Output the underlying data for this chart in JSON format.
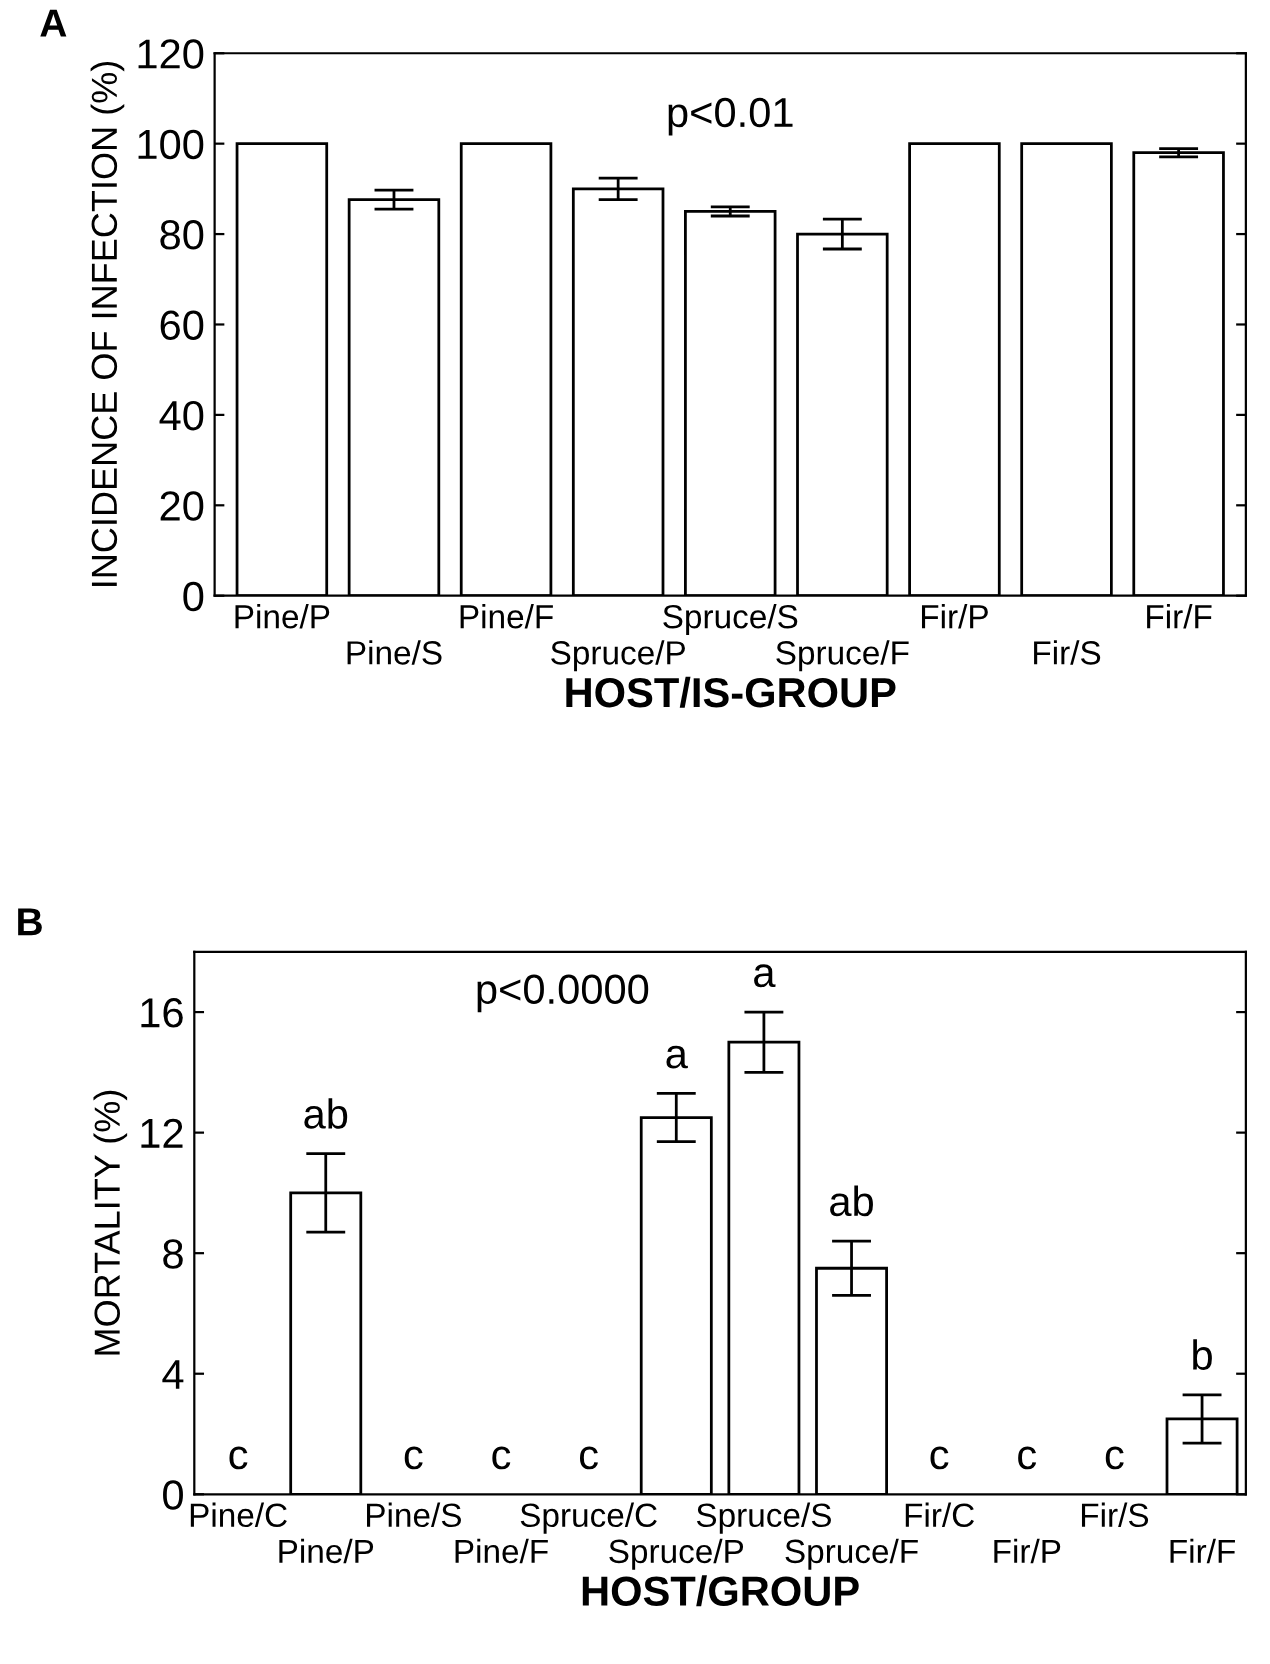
{
  "chart_data": [
    {
      "type": "bar",
      "title": "A",
      "xlabel": "HOST/IS-GROUP",
      "ylabel": "INCIDENCE OF INFECTION (%)",
      "categories": [
        "Pine/P",
        "Pine/S",
        "Pine/F",
        "Spruce/P",
        "Spruce/S",
        "Spruce/F",
        "Fir/P",
        "Fir/S",
        "Fir/F"
      ],
      "values": [
        100,
        87.6,
        100,
        90,
        85,
        80,
        100,
        100,
        98
      ],
      "errors": [
        null,
        2.1,
        null,
        2.4,
        1,
        3.3,
        null,
        null,
        0.9
      ],
      "color": "#ffffff",
      "ylim": [
        0,
        120
      ],
      "yticks": [
        0,
        20,
        40,
        60,
        80,
        100,
        120
      ],
      "grid": false,
      "annotations": [
        "p<0.01"
      ]
    },
    {
      "type": "bar",
      "title": "B",
      "xlabel": "HOST/GROUP",
      "ylabel": "MORTALITY (%)",
      "categories": [
        "Pine/C",
        "Pine/P",
        "Pine/S",
        "Pine/F",
        "Spruce/C",
        "Spruce/P",
        "Spruce/S",
        "Spruce/F",
        "Fir/C",
        "Fir/P",
        "Fir/S",
        "Fir/F"
      ],
      "values": [
        0,
        10,
        0,
        0,
        0,
        12.5,
        15,
        7.5,
        0,
        0,
        0,
        2.5
      ],
      "errors": [
        null,
        1.3,
        null,
        null,
        null,
        0.8,
        1,
        0.9,
        null,
        null,
        null,
        0.8
      ],
      "color": "#ffffff",
      "ylim": [
        0,
        18
      ],
      "yticks": [
        0,
        4,
        8,
        12,
        16
      ],
      "grid": false,
      "annotations": [
        "p<0.0000",
        {
          "text": "c",
          "x": "Pine/C",
          "y": 0
        },
        {
          "text": "ab",
          "x": "Pine/P",
          "y": 11.3
        },
        {
          "text": "c",
          "x": "Pine/S",
          "y": 0
        },
        {
          "text": "c",
          "x": "Pine/F",
          "y": 0
        },
        {
          "text": "c",
          "x": "Spruce/C",
          "y": 0
        },
        {
          "text": "a",
          "x": "Spruce/P",
          "y": 13.3
        },
        {
          "text": "a",
          "x": "Spruce/S",
          "y": 16
        },
        {
          "text": "ab",
          "x": "Spruce/F",
          "y": 8.4
        },
        {
          "text": "c",
          "x": "Fir/C",
          "y": 0
        },
        {
          "text": "c",
          "x": "Fir/P",
          "y": 0
        },
        {
          "text": "c",
          "x": "Fir/S",
          "y": 0
        },
        {
          "text": "b",
          "x": "Fir/F",
          "y": 3.3
        }
      ]
    }
  ]
}
